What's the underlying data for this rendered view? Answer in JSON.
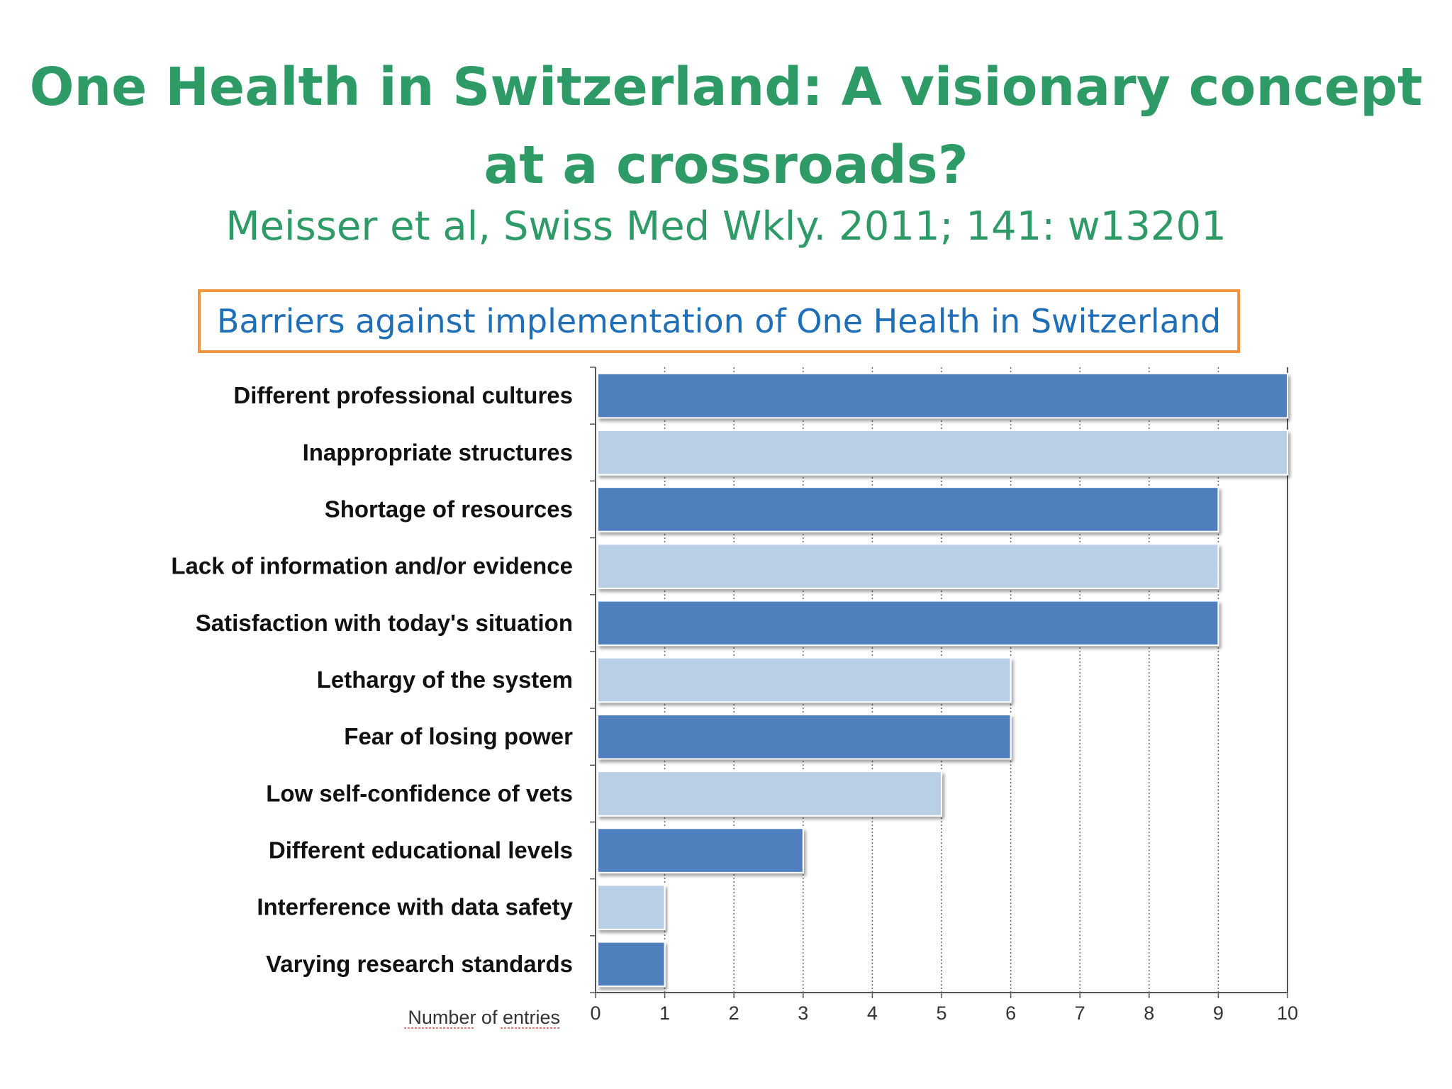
{
  "slide": {
    "title_line1": "One Health in Switzerland:  A visionary concept",
    "title_line2": "at a crossroads?",
    "citation": "Meisser et al, Swiss Med Wkly.  2011; 141: w13201",
    "caption": "Barriers against implementation of One Health in Switzerland"
  },
  "colors": {
    "title": "#2e9b66",
    "caption_text": "#1f6fb8",
    "caption_border": "#f0943d",
    "bar_dark": "#4f7fbd",
    "bar_light": "#b9cfe6"
  },
  "chart_data": {
    "type": "bar",
    "orientation": "horizontal",
    "categories": [
      "Different professional cultures",
      "Inappropriate structures",
      "Shortage of resources",
      "Lack of information and/or evidence",
      "Satisfaction with today's situation",
      "Lethargy of the system",
      "Fear of losing power",
      "Low self-confidence of vets",
      "Different educational levels",
      "Interference with data safety",
      "Varying research standards"
    ],
    "values": [
      10,
      10,
      9,
      9,
      9,
      6,
      6,
      5,
      3,
      1,
      1
    ],
    "xlabel": "Number of entries",
    "ylabel": "",
    "xlim": [
      0,
      10
    ],
    "xticks": [
      "0",
      "1",
      "2",
      "3",
      "4",
      "5",
      "6",
      "7",
      "8",
      "9",
      "10"
    ],
    "grid": "vertical dotted",
    "bar_colors": "alternating dark/light blue"
  }
}
